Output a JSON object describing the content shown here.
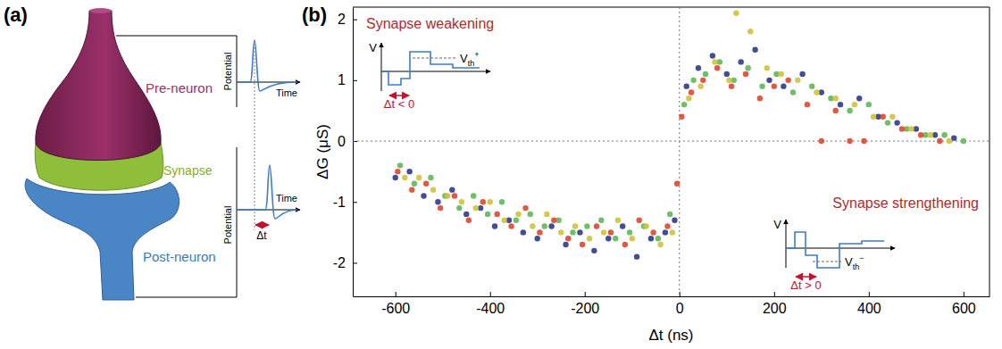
{
  "diagram": {
    "label": "(a)",
    "pre_neuron": "Pre-neuron",
    "synapse": "Synapse",
    "post_neuron": "Post-neuron",
    "pre_trace": {
      "y_label": "Potential",
      "x_label": "Time"
    },
    "post_trace": {
      "y_label": "Potential",
      "x_label": "Time",
      "delay": "Δt"
    }
  },
  "chart_data": {
    "type": "scatter",
    "panel_label": "(b)",
    "x_label": "Δt (ns)",
    "y_label": "ΔG (μS)",
    "xlim": [
      -690,
      655
    ],
    "ylim": [
      -2.55,
      2.2
    ],
    "xticks": [
      -600,
      -400,
      -200,
      0,
      200,
      400,
      600
    ],
    "yticks": [
      -2,
      -1,
      0,
      1,
      2
    ],
    "grid": false,
    "marker": "circle",
    "reference_lines": {
      "x": [
        0
      ],
      "y": [
        0
      ]
    },
    "annotations": [
      {
        "text": "Synapse weakening",
        "inset": {
          "axis_label": "V",
          "threshold": {
            "text": "V",
            "sub": "th",
            "sup": "+"
          },
          "delay": "Δt < 0"
        }
      },
      {
        "text": "Synapse strengthening",
        "inset": {
          "axis_label": "V",
          "threshold": {
            "text": "V",
            "sub": "th",
            "sup": "−"
          },
          "delay": "Δt > 0"
        }
      }
    ],
    "series": [
      {
        "color": "#2e3a87",
        "x": [
          -600,
          -570,
          -540,
          -510,
          -480,
          -450,
          -420,
          -390,
          -360,
          -330,
          -300,
          -270,
          -240,
          -210,
          -180,
          -150,
          -120,
          -90,
          -60,
          -30,
          -10,
          15,
          40,
          70,
          100,
          130,
          160,
          190,
          220,
          260,
          300,
          340,
          380,
          420,
          460,
          500,
          540,
          580
        ],
        "values": [
          -0.6,
          -0.5,
          -0.9,
          -1.0,
          -0.8,
          -1.2,
          -1.1,
          -1.4,
          -1.3,
          -1.5,
          -1.6,
          -1.4,
          -1.7,
          -1.5,
          -1.8,
          -1.6,
          -1.4,
          -1.9,
          -1.6,
          -1.5,
          -1.3,
          0.9,
          1.2,
          1.4,
          1.1,
          1.3,
          1.5,
          1.0,
          0.9,
          1.1,
          0.8,
          0.6,
          0.7,
          0.4,
          0.3,
          0.2,
          0.1,
          0.05
        ]
      },
      {
        "color": "#5fb85a",
        "x": [
          -590,
          -560,
          -525,
          -495,
          -465,
          -435,
          -405,
          -375,
          -345,
          -315,
          -285,
          -255,
          -225,
          -195,
          -165,
          -135,
          -105,
          -75,
          -45,
          -20,
          10,
          30,
          55,
          85,
          115,
          145,
          175,
          205,
          240,
          280,
          320,
          360,
          400,
          440,
          480,
          520,
          560,
          600
        ],
        "values": [
          -0.4,
          -0.7,
          -0.6,
          -0.9,
          -1.1,
          -0.9,
          -1.2,
          -1.0,
          -1.3,
          -1.2,
          -1.4,
          -1.3,
          -1.5,
          -1.4,
          -1.3,
          -1.6,
          -1.5,
          -1.4,
          -1.6,
          -1.2,
          0.6,
          1.0,
          1.1,
          1.3,
          1.0,
          1.2,
          0.9,
          1.1,
          0.8,
          0.9,
          0.7,
          0.5,
          0.6,
          0.3,
          0.2,
          0.1,
          0.1,
          0.0
        ]
      },
      {
        "color": "#e0462f",
        "x": [
          -595,
          -565,
          -535,
          -505,
          -475,
          -445,
          -415,
          -385,
          -355,
          -325,
          -295,
          -265,
          -235,
          -205,
          -175,
          -145,
          -115,
          -85,
          -55,
          -25,
          -5,
          5,
          25,
          50,
          80,
          110,
          140,
          170,
          200,
          230,
          270,
          300,
          330,
          360,
          390,
          430,
          470,
          510,
          550
        ],
        "values": [
          -0.5,
          -0.8,
          -0.7,
          -1.1,
          -0.9,
          -1.3,
          -1.0,
          -1.2,
          -1.4,
          -1.1,
          -1.5,
          -1.3,
          -1.6,
          -1.7,
          -1.4,
          -1.5,
          -1.7,
          -1.3,
          -1.5,
          -1.4,
          -0.7,
          0.4,
          0.8,
          1.0,
          1.2,
          0.9,
          1.1,
          0.7,
          0.9,
          1.0,
          0.6,
          0.0,
          0.5,
          0.0,
          0.0,
          0.4,
          0.2,
          0.1,
          0.0
        ]
      },
      {
        "color": "#cfc23a",
        "x": [
          -580,
          -550,
          -520,
          -490,
          -460,
          -430,
          -400,
          -370,
          -340,
          -310,
          -280,
          -250,
          -220,
          -190,
          -160,
          -130,
          -100,
          -70,
          -40,
          -15,
          20,
          45,
          75,
          105,
          120,
          150,
          185,
          215,
          250,
          290,
          330,
          370,
          410,
          450,
          490,
          530,
          570
        ],
        "values": [
          -0.6,
          -0.6,
          -0.8,
          -0.9,
          -1.0,
          -1.1,
          -1.0,
          -1.3,
          -1.2,
          -1.4,
          -1.2,
          -1.5,
          -1.4,
          -1.6,
          -1.5,
          -1.3,
          -1.6,
          -1.4,
          -1.7,
          -1.5,
          0.7,
          0.9,
          1.3,
          1.0,
          2.1,
          1.8,
          1.2,
          1.1,
          1.0,
          0.8,
          0.7,
          0.6,
          0.4,
          0.4,
          0.2,
          0.1,
          0.0
        ]
      }
    ]
  }
}
